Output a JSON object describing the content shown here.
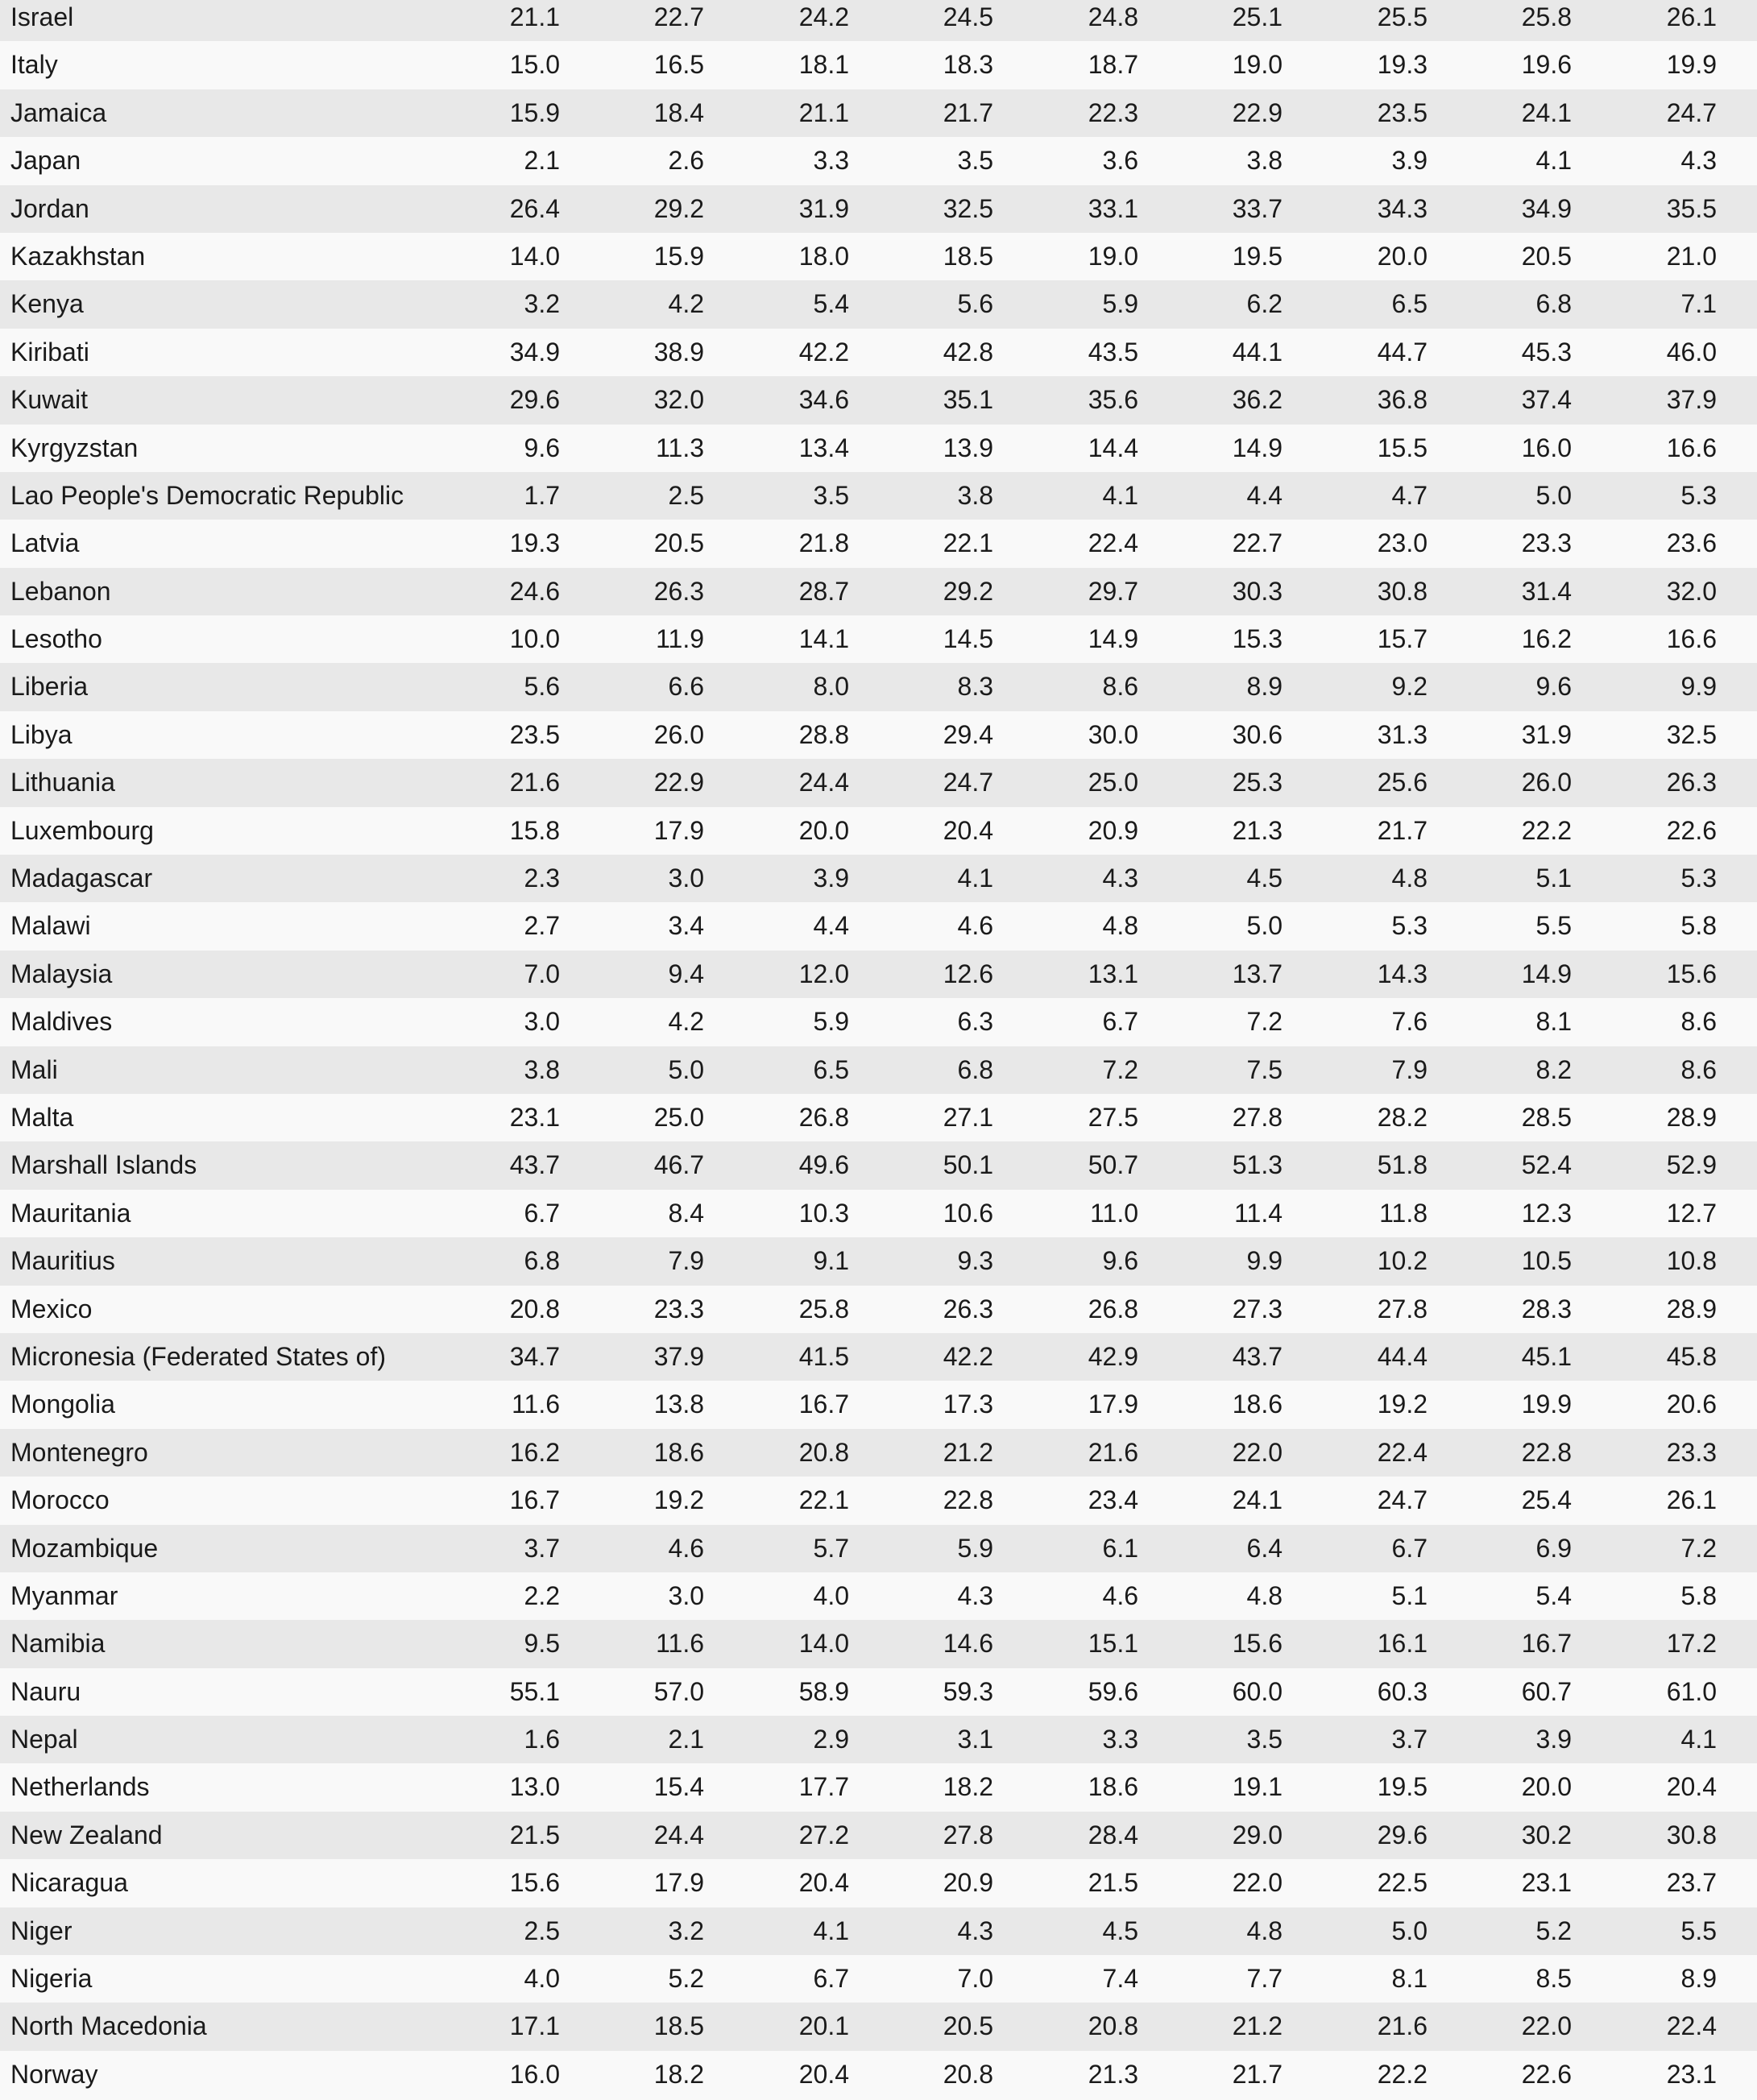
{
  "table": {
    "rows": [
      {
        "country": "Israel",
        "values": [
          "21.1",
          "22.7",
          "24.2",
          "24.5",
          "24.8",
          "25.1",
          "25.5",
          "25.8",
          "26.1"
        ]
      },
      {
        "country": "Italy",
        "values": [
          "15.0",
          "16.5",
          "18.1",
          "18.3",
          "18.7",
          "19.0",
          "19.3",
          "19.6",
          "19.9"
        ]
      },
      {
        "country": "Jamaica",
        "values": [
          "15.9",
          "18.4",
          "21.1",
          "21.7",
          "22.3",
          "22.9",
          "23.5",
          "24.1",
          "24.7"
        ]
      },
      {
        "country": "Japan",
        "values": [
          "2.1",
          "2.6",
          "3.3",
          "3.5",
          "3.6",
          "3.8",
          "3.9",
          "4.1",
          "4.3"
        ]
      },
      {
        "country": "Jordan",
        "values": [
          "26.4",
          "29.2",
          "31.9",
          "32.5",
          "33.1",
          "33.7",
          "34.3",
          "34.9",
          "35.5"
        ]
      },
      {
        "country": "Kazakhstan",
        "values": [
          "14.0",
          "15.9",
          "18.0",
          "18.5",
          "19.0",
          "19.5",
          "20.0",
          "20.5",
          "21.0"
        ]
      },
      {
        "country": "Kenya",
        "values": [
          "3.2",
          "4.2",
          "5.4",
          "5.6",
          "5.9",
          "6.2",
          "6.5",
          "6.8",
          "7.1"
        ]
      },
      {
        "country": "Kiribati",
        "values": [
          "34.9",
          "38.9",
          "42.2",
          "42.8",
          "43.5",
          "44.1",
          "44.7",
          "45.3",
          "46.0"
        ]
      },
      {
        "country": "Kuwait",
        "values": [
          "29.6",
          "32.0",
          "34.6",
          "35.1",
          "35.6",
          "36.2",
          "36.8",
          "37.4",
          "37.9"
        ]
      },
      {
        "country": "Kyrgyzstan",
        "values": [
          "9.6",
          "11.3",
          "13.4",
          "13.9",
          "14.4",
          "14.9",
          "15.5",
          "16.0",
          "16.6"
        ]
      },
      {
        "country": "Lao People's Democratic Republic",
        "values": [
          "1.7",
          "2.5",
          "3.5",
          "3.8",
          "4.1",
          "4.4",
          "4.7",
          "5.0",
          "5.3"
        ]
      },
      {
        "country": "Latvia",
        "values": [
          "19.3",
          "20.5",
          "21.8",
          "22.1",
          "22.4",
          "22.7",
          "23.0",
          "23.3",
          "23.6"
        ]
      },
      {
        "country": "Lebanon",
        "values": [
          "24.6",
          "26.3",
          "28.7",
          "29.2",
          "29.7",
          "30.3",
          "30.8",
          "31.4",
          "32.0"
        ]
      },
      {
        "country": "Lesotho",
        "values": [
          "10.0",
          "11.9",
          "14.1",
          "14.5",
          "14.9",
          "15.3",
          "15.7",
          "16.2",
          "16.6"
        ]
      },
      {
        "country": "Liberia",
        "values": [
          "5.6",
          "6.6",
          "8.0",
          "8.3",
          "8.6",
          "8.9",
          "9.2",
          "9.6",
          "9.9"
        ]
      },
      {
        "country": "Libya",
        "values": [
          "23.5",
          "26.0",
          "28.8",
          "29.4",
          "30.0",
          "30.6",
          "31.3",
          "31.9",
          "32.5"
        ]
      },
      {
        "country": "Lithuania",
        "values": [
          "21.6",
          "22.9",
          "24.4",
          "24.7",
          "25.0",
          "25.3",
          "25.6",
          "26.0",
          "26.3"
        ]
      },
      {
        "country": "Luxembourg",
        "values": [
          "15.8",
          "17.9",
          "20.0",
          "20.4",
          "20.9",
          "21.3",
          "21.7",
          "22.2",
          "22.6"
        ]
      },
      {
        "country": "Madagascar",
        "values": [
          "2.3",
          "3.0",
          "3.9",
          "4.1",
          "4.3",
          "4.5",
          "4.8",
          "5.1",
          "5.3"
        ]
      },
      {
        "country": "Malawi",
        "values": [
          "2.7",
          "3.4",
          "4.4",
          "4.6",
          "4.8",
          "5.0",
          "5.3",
          "5.5",
          "5.8"
        ]
      },
      {
        "country": "Malaysia",
        "values": [
          "7.0",
          "9.4",
          "12.0",
          "12.6",
          "13.1",
          "13.7",
          "14.3",
          "14.9",
          "15.6"
        ]
      },
      {
        "country": "Maldives",
        "values": [
          "3.0",
          "4.2",
          "5.9",
          "6.3",
          "6.7",
          "7.2",
          "7.6",
          "8.1",
          "8.6"
        ]
      },
      {
        "country": "Mali",
        "values": [
          "3.8",
          "5.0",
          "6.5",
          "6.8",
          "7.2",
          "7.5",
          "7.9",
          "8.2",
          "8.6"
        ]
      },
      {
        "country": "Malta",
        "values": [
          "23.1",
          "25.0",
          "26.8",
          "27.1",
          "27.5",
          "27.8",
          "28.2",
          "28.5",
          "28.9"
        ]
      },
      {
        "country": "Marshall Islands",
        "values": [
          "43.7",
          "46.7",
          "49.6",
          "50.1",
          "50.7",
          "51.3",
          "51.8",
          "52.4",
          "52.9"
        ]
      },
      {
        "country": "Mauritania",
        "values": [
          "6.7",
          "8.4",
          "10.3",
          "10.6",
          "11.0",
          "11.4",
          "11.8",
          "12.3",
          "12.7"
        ]
      },
      {
        "country": "Mauritius",
        "values": [
          "6.8",
          "7.9",
          "9.1",
          "9.3",
          "9.6",
          "9.9",
          "10.2",
          "10.5",
          "10.8"
        ]
      },
      {
        "country": "Mexico",
        "values": [
          "20.8",
          "23.3",
          "25.8",
          "26.3",
          "26.8",
          "27.3",
          "27.8",
          "28.3",
          "28.9"
        ]
      },
      {
        "country": "Micronesia (Federated States of)",
        "values": [
          "34.7",
          "37.9",
          "41.5",
          "42.2",
          "42.9",
          "43.7",
          "44.4",
          "45.1",
          "45.8"
        ]
      },
      {
        "country": "Mongolia",
        "values": [
          "11.6",
          "13.8",
          "16.7",
          "17.3",
          "17.9",
          "18.6",
          "19.2",
          "19.9",
          "20.6"
        ]
      },
      {
        "country": "Montenegro",
        "values": [
          "16.2",
          "18.6",
          "20.8",
          "21.2",
          "21.6",
          "22.0",
          "22.4",
          "22.8",
          "23.3"
        ]
      },
      {
        "country": "Morocco",
        "values": [
          "16.7",
          "19.2",
          "22.1",
          "22.8",
          "23.4",
          "24.1",
          "24.7",
          "25.4",
          "26.1"
        ]
      },
      {
        "country": "Mozambique",
        "values": [
          "3.7",
          "4.6",
          "5.7",
          "5.9",
          "6.1",
          "6.4",
          "6.7",
          "6.9",
          "7.2"
        ]
      },
      {
        "country": "Myanmar",
        "values": [
          "2.2",
          "3.0",
          "4.0",
          "4.3",
          "4.6",
          "4.8",
          "5.1",
          "5.4",
          "5.8"
        ]
      },
      {
        "country": "Namibia",
        "values": [
          "9.5",
          "11.6",
          "14.0",
          "14.6",
          "15.1",
          "15.6",
          "16.1",
          "16.7",
          "17.2"
        ]
      },
      {
        "country": "Nauru",
        "values": [
          "55.1",
          "57.0",
          "58.9",
          "59.3",
          "59.6",
          "60.0",
          "60.3",
          "60.7",
          "61.0"
        ]
      },
      {
        "country": "Nepal",
        "values": [
          "1.6",
          "2.1",
          "2.9",
          "3.1",
          "3.3",
          "3.5",
          "3.7",
          "3.9",
          "4.1"
        ]
      },
      {
        "country": "Netherlands",
        "values": [
          "13.0",
          "15.4",
          "17.7",
          "18.2",
          "18.6",
          "19.1",
          "19.5",
          "20.0",
          "20.4"
        ]
      },
      {
        "country": "New Zealand",
        "values": [
          "21.5",
          "24.4",
          "27.2",
          "27.8",
          "28.4",
          "29.0",
          "29.6",
          "30.2",
          "30.8"
        ]
      },
      {
        "country": "Nicaragua",
        "values": [
          "15.6",
          "17.9",
          "20.4",
          "20.9",
          "21.5",
          "22.0",
          "22.5",
          "23.1",
          "23.7"
        ]
      },
      {
        "country": "Niger",
        "values": [
          "2.5",
          "3.2",
          "4.1",
          "4.3",
          "4.5",
          "4.8",
          "5.0",
          "5.2",
          "5.5"
        ]
      },
      {
        "country": "Nigeria",
        "values": [
          "4.0",
          "5.2",
          "6.7",
          "7.0",
          "7.4",
          "7.7",
          "8.1",
          "8.5",
          "8.9"
        ]
      },
      {
        "country": "North Macedonia",
        "values": [
          "17.1",
          "18.5",
          "20.1",
          "20.5",
          "20.8",
          "21.2",
          "21.6",
          "22.0",
          "22.4"
        ]
      },
      {
        "country": "Norway",
        "values": [
          "16.0",
          "18.2",
          "20.4",
          "20.8",
          "21.3",
          "21.7",
          "22.2",
          "22.6",
          "23.1"
        ]
      }
    ]
  }
}
